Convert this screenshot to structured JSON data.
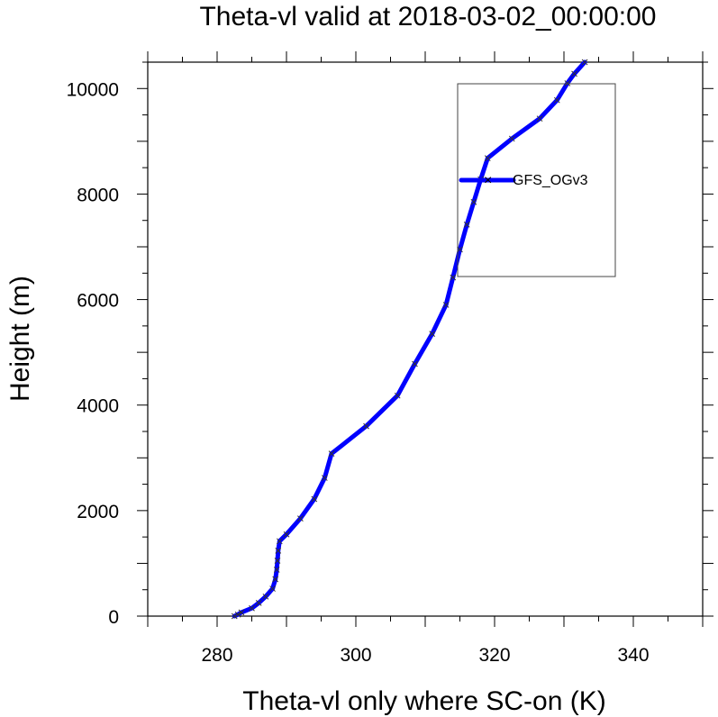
{
  "chart_data": {
    "type": "line",
    "title": "Theta-vl valid at 2018-03-02_00:00:00",
    "xlabel": "Theta-vl only where SC-on (K)",
    "ylabel": "Height (m)",
    "xlim": [
      270,
      350
    ],
    "ylim": [
      0,
      10500
    ],
    "xticks": [
      280,
      300,
      320,
      340
    ],
    "yticks": [
      0,
      2000,
      4000,
      6000,
      8000,
      10000
    ],
    "legend": "upper-right inside plot",
    "series": [
      {
        "name": "GFS_OGv3",
        "color": "#0000ff",
        "marker_color": "#333333",
        "x": [
          282.5,
          283.0,
          283.5,
          285.0,
          286.0,
          287.0,
          288.0,
          288.4,
          288.6,
          288.7,
          288.8,
          289.0,
          290.0,
          292.0,
          294.0,
          295.5,
          296.5,
          301.5,
          306.0,
          308.5,
          311.0,
          313.0,
          314.0,
          315.0,
          316.0,
          317.0,
          318.0,
          319.0,
          322.5,
          326.5,
          329.0,
          330.5,
          331.5,
          333.0
        ],
        "y": [
          0,
          30,
          70,
          150,
          250,
          370,
          520,
          700,
          880,
          1050,
          1240,
          1420,
          1550,
          1850,
          2220,
          2620,
          3080,
          3600,
          4180,
          4780,
          5350,
          5900,
          6420,
          6950,
          7420,
          7850,
          8280,
          8680,
          9050,
          9430,
          9780,
          10100,
          10280,
          10500
        ]
      }
    ]
  }
}
